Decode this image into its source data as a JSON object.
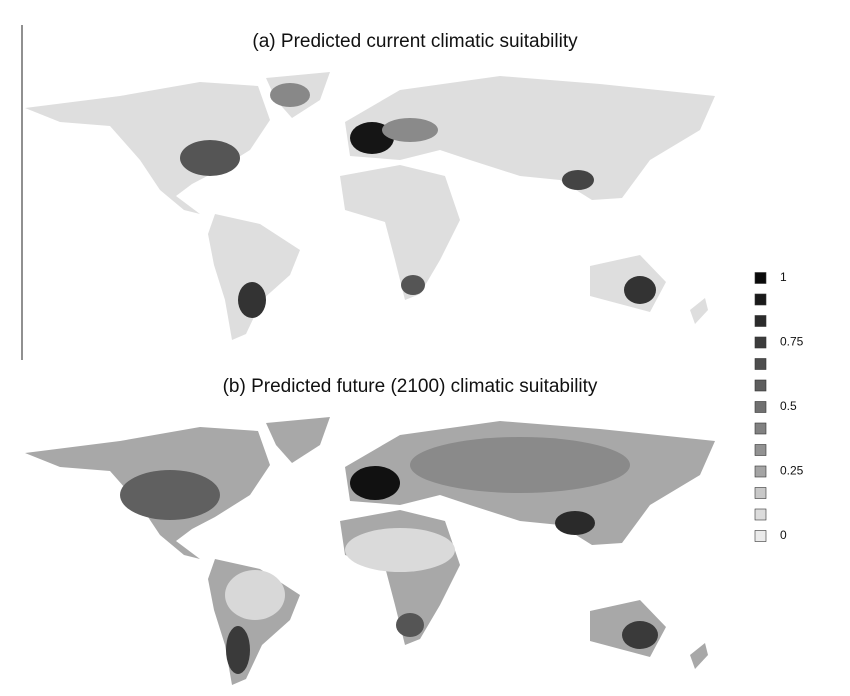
{
  "panels": [
    {
      "title": "(a) Predicted current climatic suitability"
    },
    {
      "title": "(b) Predicted future (2100) climatic suitability"
    }
  ],
  "legend": {
    "items": [
      {
        "color": "#0a0a0a",
        "label": "1"
      },
      {
        "color": "#1a1a1a",
        "label": null
      },
      {
        "color": "#2b2b2b",
        "label": null
      },
      {
        "color": "#3c3c3c",
        "label": "0.75"
      },
      {
        "color": "#4d4d4d",
        "label": null
      },
      {
        "color": "#5e5e5e",
        "label": null
      },
      {
        "color": "#707070",
        "label": "0.5"
      },
      {
        "color": "#818181",
        "label": null
      },
      {
        "color": "#929292",
        "label": null
      },
      {
        "color": "#a4a4a4",
        "label": "0.25"
      },
      {
        "color": "#c8c8c8",
        "label": null
      },
      {
        "color": "#dcdcdc",
        "label": null
      },
      {
        "color": "#ebebeb",
        "label": "0"
      }
    ]
  }
}
